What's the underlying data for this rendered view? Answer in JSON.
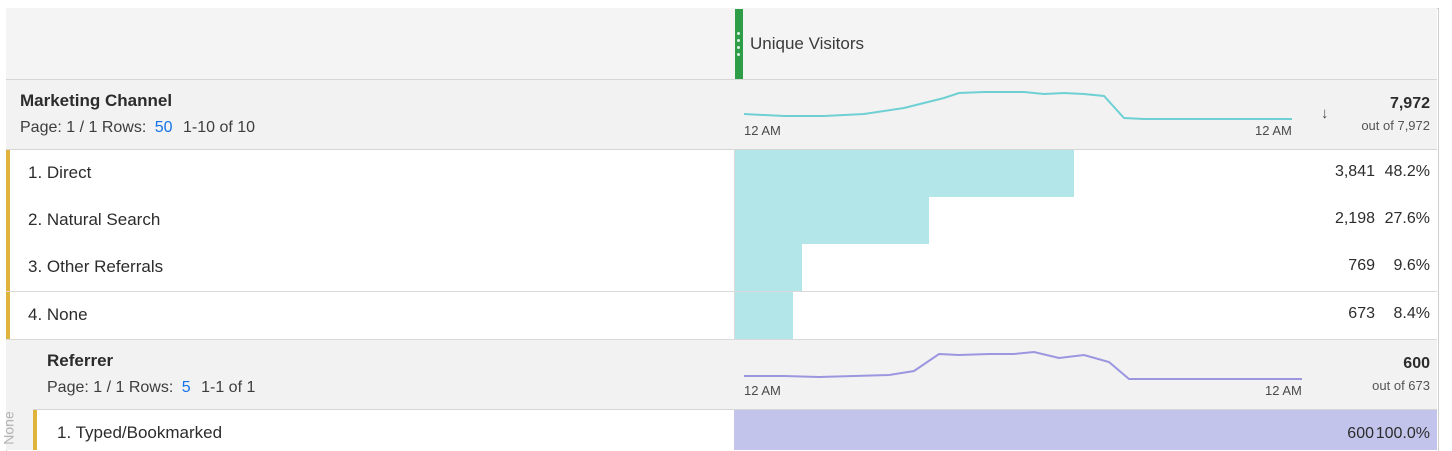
{
  "metric": {
    "title": "Unique Visitors"
  },
  "marketing_channel": {
    "title": "Marketing Channel",
    "page_text": "Page: 1 / 1",
    "rows_label": "Rows:",
    "rows_value": "50",
    "range_text": "1-10 of 10",
    "spark_start": "12 AM",
    "spark_end": "12 AM",
    "total": "7,972",
    "out_of": "out of 7,972",
    "sort_icon": "sort-down-arrow",
    "spark_color": "#6fd0d4",
    "rows": [
      {
        "label": "1. Direct",
        "value": "3,841",
        "percent": "48.2%",
        "share": 0.482
      },
      {
        "label": "2. Natural Search",
        "value": "2,198",
        "percent": "27.6%",
        "share": 0.276
      },
      {
        "label": "3. Other Referrals",
        "value": "769",
        "percent": "9.6%",
        "share": 0.096
      },
      {
        "label": "4. None",
        "value": "673",
        "percent": "8.4%",
        "share": 0.084
      }
    ]
  },
  "referrer": {
    "title": "Referrer",
    "page_text": "Page: 1 / 1",
    "rows_label": "Rows:",
    "rows_value": "5",
    "range_text": "1-1 of 1",
    "spark_start": "12 AM",
    "spark_end": "12 AM",
    "total": "600",
    "out_of": "out of 673",
    "parent_label": "None",
    "spark_color": "#9b96e0",
    "rows": [
      {
        "label": "1. Typed/Bookmarked",
        "value": "600",
        "percent": "100.0%",
        "share": 1.0
      }
    ]
  },
  "colors": {
    "channel_bar": "#b3e6e8",
    "referrer_bar": "#c3c4ec",
    "accent": "#e0b43a",
    "grip": "#2d9d48",
    "link": "#1473e6"
  }
}
